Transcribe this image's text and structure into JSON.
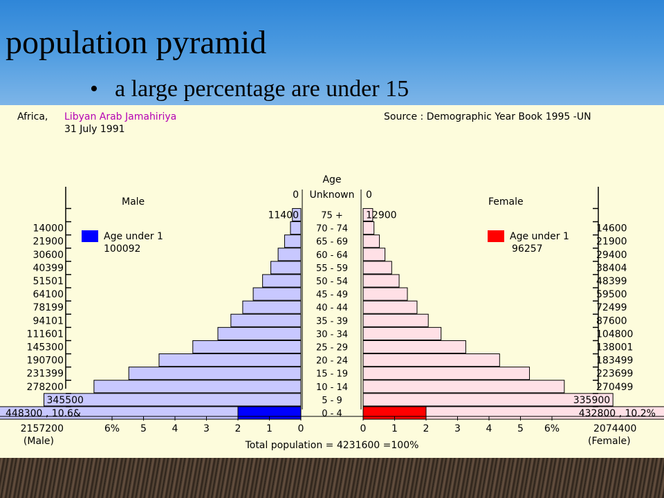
{
  "slide": {
    "title": "population pyramid",
    "bullet": "a large percentage are under 15"
  },
  "header": {
    "region": "Africa,",
    "country": "Libyan Arab Jamahiriya",
    "date": "31 July 1991",
    "source": "Source : Demographic Year Book 1995 -UN"
  },
  "labels": {
    "age_title": "Age",
    "male": "Male",
    "female": "Female",
    "male_age_under_1_label": "Age under 1",
    "male_age_under_1_value": "100092",
    "female_age_under_1_label": "Age under 1",
    "female_age_under_1_value": "96257",
    "male_total": "2157200",
    "male_total_label": "(Male)",
    "female_total": "2074400",
    "female_total_label": "(Female)",
    "total_population": "Total population = 4231600 =100%",
    "male_first_row": "448300  , 10.6&",
    "female_first_row": "432800  , 10.2%"
  },
  "colors": {
    "male_fill": "#c8c8ff",
    "male_highlight": "#0000ff",
    "female_fill": "#ffe0e6",
    "female_highlight": "#ff0000",
    "panel_bg": "#fdfcdc",
    "country_text": "#b400b4"
  },
  "chart_data": {
    "type": "bar",
    "orientation": "horizontal-pyramid",
    "unknown_row": {
      "category": "Unknown",
      "male": 0,
      "female": 0
    },
    "categories": [
      "75 +",
      "70 - 74",
      "65 - 69",
      "60 - 64",
      "55 - 59",
      "50 - 54",
      "45 - 49",
      "40 - 44",
      "35 - 39",
      "30 - 34",
      "25 - 29",
      "20 - 24",
      "15 - 19",
      "10 - 14",
      "5 - 9",
      "0 - 4"
    ],
    "series": [
      {
        "name": "Male",
        "values": [
          11400,
          14000,
          21900,
          30600,
          40399,
          51501,
          64100,
          78199,
          94101,
          111601,
          145300,
          190700,
          231399,
          278200,
          345500,
          448300
        ]
      },
      {
        "name": "Female",
        "values": [
          12900,
          14600,
          21900,
          29400,
          38404,
          48399,
          59500,
          72499,
          87600,
          104800,
          138001,
          183499,
          223699,
          270499,
          335900,
          432800
        ]
      }
    ],
    "percent_ticks": [
      "0",
      "1",
      "2",
      "3",
      "4",
      "5",
      "6%"
    ],
    "xlabel": "Total population = 4231600 =100%",
    "xlim_percent": [
      0,
      6
    ],
    "total_population": 4231600,
    "age_under_1": {
      "male": 100092,
      "female": 96257
    }
  }
}
